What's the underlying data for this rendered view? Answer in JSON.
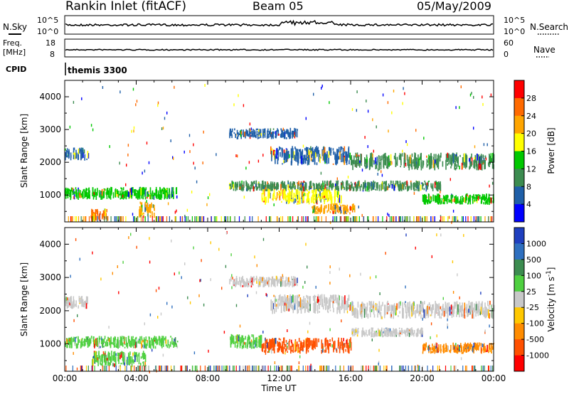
{
  "header": {
    "station": "Rankin Inlet (fitACF)",
    "beam": "Beam 05",
    "date": "05/May/2009"
  },
  "top_panels": {
    "nsky_label": "N.Sky",
    "nsky_ticks": [
      "10^5",
      "10^0"
    ],
    "nsearch_label": "N.Search",
    "nsearch_ticks": [
      "10^5",
      "10^0"
    ],
    "freq_label": "Freq.",
    "freq_unit": "[MHz]",
    "freq_ticks": [
      "18",
      "8"
    ],
    "nave_label": "Nave",
    "nave_ticks": [
      "60",
      "0"
    ],
    "cpid_label": "CPID",
    "cpid_value": "themis 3300"
  },
  "chart_data": [
    {
      "type": "heatmap",
      "title": "",
      "xlabel": "Time UT",
      "ylabel": "Slant Range [km]",
      "x_ticks": [
        "00:00",
        "04:00",
        "08:00",
        "12:00",
        "16:00",
        "20:00",
        "00:00"
      ],
      "y_ticks": [
        "1000",
        "2000",
        "3000",
        "4000"
      ],
      "xlim": [
        0,
        24
      ],
      "ylim": [
        180,
        4500
      ],
      "colorbar": {
        "label": "Power [dB]",
        "ticks": [
          "28",
          "24",
          "20",
          "16",
          "12",
          "8",
          "4"
        ],
        "colors": [
          "#ff0000",
          "#ff6a00",
          "#ffa500",
          "#ffff00",
          "#00c800",
          "#3c8c50",
          "#1f5fa8",
          "#0000ff"
        ]
      },
      "bands": [
        {
          "t0": 0.0,
          "t1": 1.3,
          "r0": 2050,
          "r1": 2450,
          "level": "8"
        },
        {
          "t0": 0.0,
          "t1": 6.3,
          "r0": 850,
          "r1": 1250,
          "level": "16"
        },
        {
          "t0": 1.4,
          "t1": 2.4,
          "r0": 200,
          "r1": 600,
          "level": "28"
        },
        {
          "t0": 4.1,
          "t1": 5.0,
          "r0": 300,
          "r1": 800,
          "level": "24"
        },
        {
          "t0": 9.2,
          "t1": 13.0,
          "r0": 2700,
          "r1": 3050,
          "level": "8"
        },
        {
          "t0": 11.5,
          "t1": 16.0,
          "r0": 1900,
          "r1": 2500,
          "level": "8"
        },
        {
          "t0": 9.2,
          "t1": 21.0,
          "r0": 1100,
          "r1": 1450,
          "level": "12"
        },
        {
          "t0": 11.0,
          "t1": 15.5,
          "r0": 700,
          "r1": 1200,
          "level": "20"
        },
        {
          "t0": 13.8,
          "t1": 16.2,
          "r0": 400,
          "r1": 750,
          "level": "24"
        },
        {
          "t0": 16.0,
          "t1": 24.0,
          "r0": 1750,
          "r1": 2300,
          "level": "12"
        },
        {
          "t0": 20.0,
          "t1": 24.0,
          "r0": 700,
          "r1": 1050,
          "level": "16"
        }
      ]
    },
    {
      "type": "heatmap",
      "title": "",
      "xlabel": "Time UT",
      "ylabel": "Slant Range [km]",
      "x_ticks": [
        "00:00",
        "04:00",
        "08:00",
        "12:00",
        "16:00",
        "20:00",
        "00:00"
      ],
      "y_ticks": [
        "1000",
        "2000",
        "3000",
        "4000"
      ],
      "xlim": [
        0,
        24
      ],
      "ylim": [
        180,
        4500
      ],
      "colorbar": {
        "label": "Velocity [m s^-1]",
        "ticks": [
          "1000",
          "500",
          "100",
          "25",
          "-25",
          "-100",
          "-500",
          "-1000"
        ],
        "colors": [
          "#1f3fbf",
          "#2e6fbf",
          "#3c8c50",
          "#4fd040",
          "#c8c8c8",
          "#ffc800",
          "#ff8c00",
          "#ff5000",
          "#ff0000"
        ]
      },
      "bands": [
        {
          "t0": 0.0,
          "t1": 1.3,
          "r0": 2050,
          "r1": 2450,
          "level": "25"
        },
        {
          "t0": 0.0,
          "t1": 6.3,
          "r0": 850,
          "r1": 1250,
          "level": "100"
        },
        {
          "t0": 1.5,
          "t1": 4.5,
          "r0": 300,
          "r1": 800,
          "level": "100"
        },
        {
          "t0": 9.2,
          "t1": 13.0,
          "r0": 2700,
          "r1": 3050,
          "level": "25"
        },
        {
          "t0": 11.5,
          "t1": 16.0,
          "r0": 1900,
          "r1": 2500,
          "level": "25"
        },
        {
          "t0": 9.2,
          "t1": 11.0,
          "r0": 850,
          "r1": 1300,
          "level": "100"
        },
        {
          "t0": 11.0,
          "t1": 16.0,
          "r0": 700,
          "r1": 1200,
          "level": "-500"
        },
        {
          "t0": 16.0,
          "t1": 20.0,
          "r0": 1200,
          "r1": 1500,
          "level": "25"
        },
        {
          "t0": 16.0,
          "t1": 24.0,
          "r0": 1750,
          "r1": 2300,
          "level": "25"
        },
        {
          "t0": 20.0,
          "t1": 24.0,
          "r0": 700,
          "r1": 1050,
          "level": "-100"
        }
      ]
    }
  ]
}
